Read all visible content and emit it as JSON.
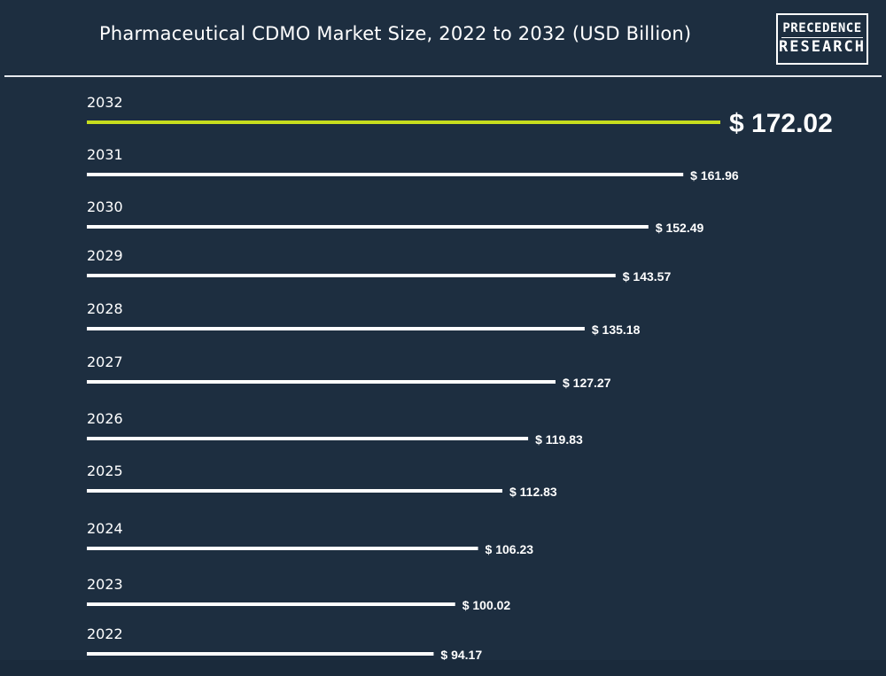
{
  "header": {
    "title": "Pharmaceutical CDMO Market Size, 2022 to 2032 (USD Billion)",
    "logo_line1": "PRECEDENCE",
    "logo_line2": "RESEARCH"
  },
  "colors": {
    "background": "#1d2e40",
    "bar": "#ffffff",
    "highlight_bar": "#c6dd1e",
    "text": "#ffffff"
  },
  "chart_data": {
    "type": "bar",
    "orientation": "horizontal",
    "title": "Pharmaceutical CDMO Market Size, 2022 to 2032 (USD Billion)",
    "categories": [
      "2032",
      "2031",
      "2030",
      "2029",
      "2028",
      "2027",
      "2026",
      "2025",
      "2024",
      "2023",
      "2022"
    ],
    "values": [
      172.02,
      161.96,
      152.49,
      143.57,
      135.18,
      127.27,
      119.83,
      112.83,
      106.23,
      100.02,
      94.17
    ],
    "value_labels": [
      "$ 172.02",
      "$ 161.96",
      "$ 152.49",
      "$ 143.57",
      "$ 135.18",
      "$ 127.27",
      "$ 119.83",
      "$ 112.83",
      "$ 106.23",
      "$ 100.02",
      "$ 94.17"
    ],
    "highlight_category": "2032",
    "grid": false,
    "legend": "none"
  }
}
